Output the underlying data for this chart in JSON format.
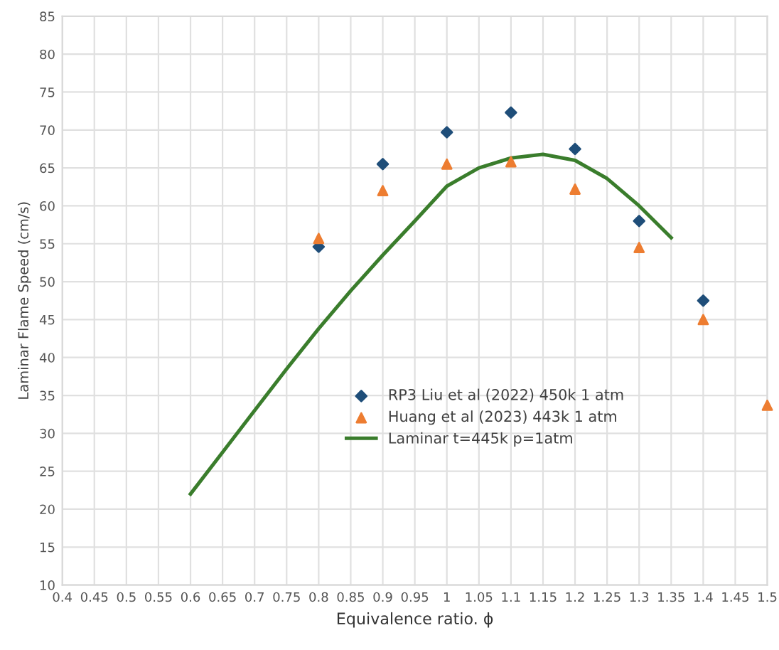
{
  "chart_data": {
    "type": "scatter",
    "xlabel": "Equivalence ratio. ϕ",
    "ylabel": "Laminar Flame Speed (cm/s)",
    "xlim": [
      0.4,
      1.5
    ],
    "xticks": [
      0.4,
      0.45,
      0.5,
      0.55,
      0.6,
      0.65,
      0.7,
      0.75,
      0.8,
      0.85,
      0.9,
      0.95,
      1,
      1.05,
      1.1,
      1.15,
      1.2,
      1.25,
      1.3,
      1.35,
      1.4,
      1.45,
      1.5
    ],
    "ylim": [
      10,
      85
    ],
    "yticks": [
      10,
      15,
      20,
      25,
      30,
      35,
      40,
      45,
      50,
      55,
      60,
      65,
      70,
      75,
      80,
      85
    ],
    "grid": true,
    "legend": "bottom",
    "series": [
      {
        "name": "RP3 Liu et al (2022) 450k 1 atm",
        "marker": "diamond",
        "color": "#1f4e79",
        "x": [
          0.8,
          0.9,
          1.0,
          1.1,
          1.2,
          1.3,
          1.4
        ],
        "values": [
          54.6,
          65.5,
          69.7,
          72.3,
          67.5,
          58,
          47.5
        ]
      },
      {
        "name": "Huang et al (2023) 443k 1 atm",
        "marker": "triangle",
        "color": "#ed7d31",
        "x": [
          0.8,
          0.9,
          1.0,
          1.1,
          1.2,
          1.3,
          1.4,
          1.5
        ],
        "values": [
          55.7,
          62,
          65.5,
          65.8,
          62.2,
          54.5,
          45,
          33.7
        ]
      },
      {
        "name": "Laminar t=445k p=1atm",
        "type": "line",
        "marker": "none",
        "color": "#3a7d2c",
        "x": [
          0.6,
          0.65,
          0.7,
          0.75,
          0.8,
          0.85,
          0.9,
          0.95,
          1.0,
          1.05,
          1.1,
          1.15,
          1.2,
          1.25,
          1.3,
          1.35
        ],
        "values": [
          22,
          27.5,
          33,
          38.5,
          43.8,
          48.8,
          53.5,
          58,
          62.6,
          65,
          66.3,
          66.8,
          66,
          63.6,
          60,
          55.8
        ]
      }
    ]
  }
}
